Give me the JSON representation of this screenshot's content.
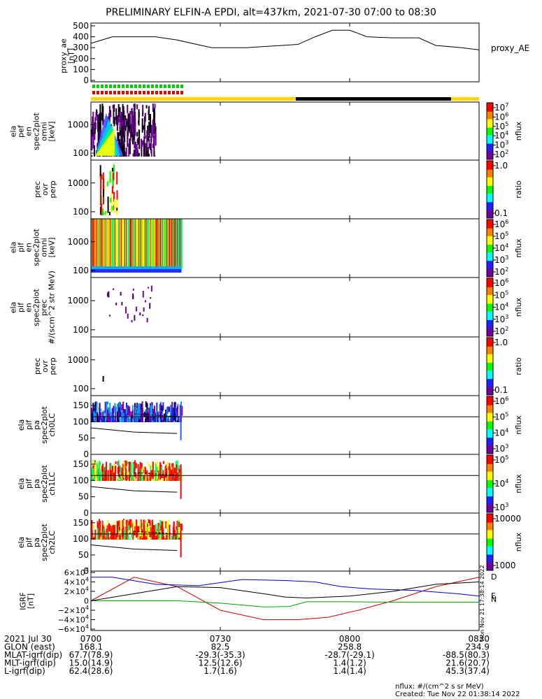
{
  "title": "PRELIMINARY ELFIN-A EPDI, alt=437km, 2021-07-30 07:00 to 08:30",
  "side_stamp": "Mon Nov 21 17:38:14 2022",
  "created": "Created: Tue Nov 22 01:38:14 2022",
  "nflux_unit": "nflux: #/(cm^2 s sr MeV)",
  "panels": {
    "ae": {
      "ylabel": [
        "proxy_ae",
        "[nT]"
      ],
      "yticks": [
        "500",
        "400",
        "300",
        "200",
        "100",
        "0"
      ],
      "legend": "proxy_AE"
    },
    "pef": {
      "ylabel": [
        "ela",
        "pef",
        "en",
        "spec2plot",
        "omni",
        "[keV]"
      ],
      "yticks": [
        "1000",
        "100"
      ],
      "cbar_label": "nflux",
      "cbar_ticks": [
        "10^7",
        "10^6",
        "10^5",
        "10^4",
        "10^3",
        "10^2"
      ]
    },
    "ratio1": {
      "ylabel": [
        "prec",
        "ovr",
        "perp"
      ],
      "yticks": [
        "1000",
        "100"
      ],
      "cbar_label": "ratio",
      "cbar_ticks": [
        "1.0",
        "0.1"
      ]
    },
    "pif": {
      "ylabel": [
        "ela",
        "pif",
        "en",
        "spec2plot",
        "omni",
        "[keV]"
      ],
      "yticks": [
        "1000",
        "100"
      ],
      "cbar_label": "nflux",
      "cbar_ticks": [
        "10^6",
        "10^5",
        "10^4",
        "10^3",
        "10^2"
      ]
    },
    "prec": {
      "ylabel": [
        "ela",
        "pif",
        "en",
        "spec2plot",
        "prec",
        "#/(scm^2 str MeV)"
      ],
      "yticks": [
        "1000",
        "100"
      ],
      "cbar_label": "nflux",
      "cbar_ticks": [
        "10^6",
        "10^5",
        "10^4",
        "10^3",
        "10^2"
      ]
    },
    "ratio2": {
      "ylabel": [
        "prec",
        "ovr",
        "perp"
      ],
      "yticks": [
        "1000",
        "100"
      ],
      "cbar_label": "ratio",
      "cbar_ticks": [
        "1.0",
        "0.1"
      ]
    },
    "pa0": {
      "ylabel": [
        "ela",
        "pif",
        "pa",
        "spec2plot",
        "ch0LC"
      ],
      "yticks": [
        "150",
        "100",
        "50",
        "0"
      ],
      "cbar_label": "nflux",
      "cbar_ticks": [
        "10^6",
        "10^5",
        "10^4",
        "10^3"
      ]
    },
    "pa1": {
      "ylabel": [
        "ela",
        "pif",
        "pa",
        "spec2plot",
        "ch1LC"
      ],
      "yticks": [
        "150",
        "100",
        "50",
        "0"
      ],
      "cbar_label": "nflux",
      "cbar_ticks": [
        "10^5",
        "10^4",
        "10^3"
      ]
    },
    "pa2": {
      "ylabel": [
        "ela",
        "pif",
        "pa",
        "spec2plot",
        "ch2LC"
      ],
      "yticks": [
        "150",
        "100",
        "50",
        "0"
      ],
      "cbar_label": "nflux",
      "cbar_ticks": [
        "10000",
        "1000"
      ]
    },
    "igrf": {
      "ylabel": [
        "IGRF",
        "[nT]"
      ],
      "yticks": [
        "6×10^4",
        "4×10^4",
        "2×10^4",
        "0",
        "−2×10^4",
        "−4×10^4",
        "−6×10^4"
      ],
      "legend": [
        "D",
        "E",
        "N"
      ]
    }
  },
  "footer": {
    "rows": [
      {
        "label": "2021 Jul 30",
        "values": [
          "0700",
          "0730",
          "0800",
          "0830"
        ]
      },
      {
        "label": "GLON (east)",
        "values": [
          "168.1",
          "82.5",
          "258.8",
          "234.9"
        ]
      },
      {
        "label": "MLAT-igrf(dip)",
        "values": [
          "67.7(78.9)",
          "-29.3(-35.3)",
          "-28.7(-29.1)",
          "-88.5(80.3)"
        ]
      },
      {
        "label": "MLT-igrf(dip)",
        "values": [
          "15.0(14.9)",
          "12.5(12.6)",
          "1.4(1.2)",
          "21.6(20.7)"
        ]
      },
      {
        "label": "L-igrf(dip)",
        "values": [
          "62.4(28.6)",
          "1.7(1.6)",
          "1.4(1.4)",
          "45.3(37.4)"
        ]
      }
    ]
  },
  "chart_data": {
    "type": "line",
    "title": "PRELIMINARY ELFIN-A EPDI, alt=437km, 2021-07-30 07:00 to 08:30",
    "x_ticks": [
      "0700",
      "0730",
      "0800",
      "0830"
    ],
    "xlim_minutes_after_0700": [
      0,
      90
    ],
    "ae": {
      "series_name": "proxy_AE",
      "ylim": [
        0,
        500
      ],
      "x": [
        0,
        5,
        15,
        20,
        28,
        36,
        44,
        48,
        52,
        56,
        60,
        64,
        70,
        76,
        80,
        86,
        90
      ],
      "y": [
        340,
        400,
        400,
        370,
        300,
        300,
        320,
        330,
        400,
        460,
        460,
        400,
        390,
        390,
        320,
        300,
        280
      ]
    },
    "igrf": {
      "ylim": [
        -60000,
        60000
      ],
      "series": [
        {
          "name": "D",
          "x": [
            0,
            10,
            20,
            30,
            40,
            48,
            55,
            62,
            70,
            80,
            90
          ],
          "y": [
            0,
            50000,
            30000,
            -20000,
            -40000,
            -40000,
            -35000,
            -20000,
            0,
            30000,
            50000
          ]
        },
        {
          "name": "E",
          "x": [
            0,
            10,
            20,
            30,
            40,
            46,
            50,
            60,
            70,
            80,
            90
          ],
          "y": [
            0,
            0,
            0,
            -5000,
            -13000,
            -12000,
            -2000,
            -2000,
            -3000,
            -3000,
            -3000
          ]
        },
        {
          "name": "N",
          "x": [
            0,
            5,
            15,
            25,
            35,
            45,
            52,
            58,
            65,
            75,
            85,
            90
          ],
          "y": [
            50000,
            50000,
            35000,
            32000,
            45000,
            43000,
            40000,
            30000,
            25000,
            22000,
            15000,
            10000
          ]
        },
        {
          "name": "",
          "x": [
            0,
            10,
            20,
            30,
            40,
            45,
            50,
            60,
            70,
            80,
            90
          ],
          "y": [
            0,
            15000,
            30000,
            28000,
            15000,
            8000,
            6000,
            10000,
            20000,
            35000,
            40000
          ]
        }
      ]
    },
    "colorbar_scale": [
      "#7000a0",
      "#2020ff",
      "#00ffff",
      "#00ff00",
      "#ffff00",
      "#ff8000",
      "#ff0000"
    ]
  }
}
